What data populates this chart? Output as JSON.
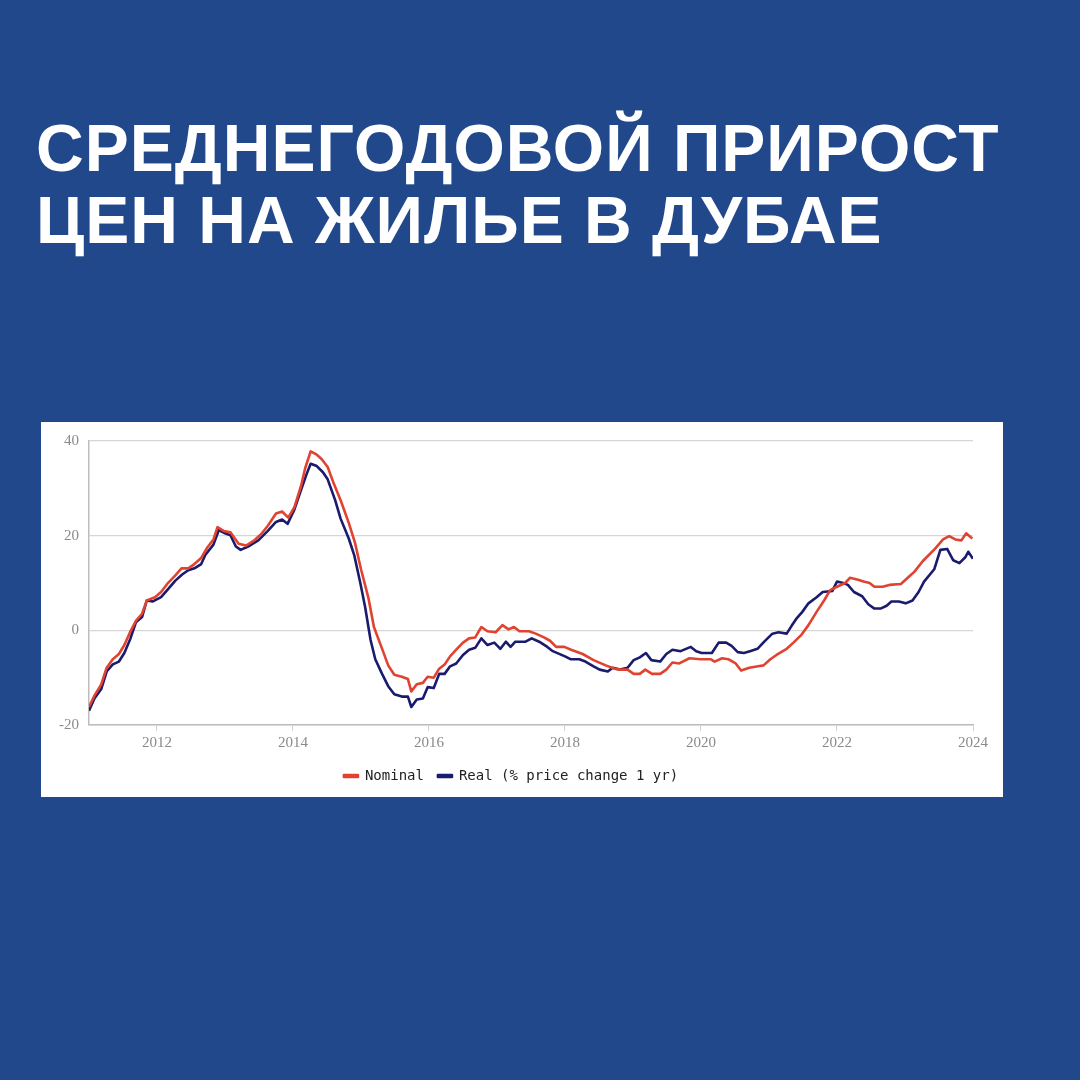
{
  "chart_data": {
    "type": "line",
    "title": "СРЕДНЕГОДОВОЙ ПРИРОСТ ЦЕН НА ЖИЛЬЕ В ДУБАЕ",
    "xlim": [
      2011,
      2024
    ],
    "xticks": [
      2012,
      2014,
      2016,
      2018,
      2020,
      2022,
      2024
    ],
    "ylim": [
      -20,
      40
    ],
    "yticks": [
      -20,
      0,
      20,
      40
    ],
    "grid": "y",
    "legend": "bottom",
    "marker": "none",
    "line_style": "solid",
    "series": [
      {
        "name": "Nominal",
        "color": "#e0432f",
        "x": [
          2011.0,
          2011.08,
          2011.18,
          2011.26,
          2011.35,
          2011.44,
          2011.52,
          2011.61,
          2011.69,
          2011.78,
          2011.85,
          2011.97,
          2012.06,
          2012.15,
          2012.27,
          2012.36,
          2012.46,
          2012.55,
          2012.65,
          2012.74,
          2012.83,
          2012.89,
          2012.98,
          2013.08,
          2013.2,
          2013.31,
          2013.43,
          2013.53,
          2013.63,
          2013.75,
          2013.84,
          2013.93,
          2014.02,
          2014.12,
          2014.18,
          2014.26,
          2014.35,
          2014.42,
          2014.51,
          2014.6,
          2014.7,
          2014.82,
          2014.91,
          2015.0,
          2015.11,
          2015.19,
          2015.3,
          2015.4,
          2015.49,
          2015.6,
          2015.69,
          2015.74,
          2015.82,
          2015.91,
          2015.98,
          2016.07,
          2016.15,
          2016.23,
          2016.31,
          2016.4,
          2016.5,
          2016.59,
          2016.68,
          2016.77,
          2016.86,
          2016.98,
          2017.08,
          2017.17,
          2017.25,
          2017.33,
          2017.47,
          2017.57,
          2017.69,
          2017.78,
          2017.87,
          2017.99,
          2018.09,
          2018.26,
          2018.42,
          2018.6,
          2018.73,
          2018.81,
          2018.92,
          2019.01,
          2019.1,
          2019.18,
          2019.28,
          2019.4,
          2019.49,
          2019.58,
          2019.68,
          2019.83,
          2019.99,
          2020.14,
          2020.2,
          2020.31,
          2020.4,
          2020.51,
          2020.59,
          2020.71,
          2020.84,
          2020.92,
          2021.02,
          2021.11,
          2021.26,
          2021.36,
          2021.48,
          2021.58,
          2021.7,
          2021.81,
          2021.9,
          2022.0,
          2022.12,
          2022.19,
          2022.31,
          2022.39,
          2022.48,
          2022.55,
          2022.67,
          2022.77,
          2022.94,
          2023.04,
          2023.14,
          2023.26,
          2023.44,
          2023.56,
          2023.65,
          2023.74,
          2023.83,
          2023.9,
          2023.99
        ],
        "values": [
          -16.2,
          -13.8,
          -11.4,
          -7.9,
          -6.1,
          -5.0,
          -3.1,
          -0.2,
          2.0,
          3.5,
          6.3,
          7.0,
          8.1,
          9.8,
          11.6,
          13.1,
          13.1,
          14.0,
          15.3,
          17.5,
          19.2,
          21.8,
          21.0,
          20.7,
          18.3,
          17.9,
          19.0,
          20.3,
          22.1,
          24.7,
          25.1,
          23.8,
          26.0,
          30.6,
          34.3,
          37.8,
          37.1,
          36.2,
          34.5,
          31.0,
          27.5,
          22.7,
          18.6,
          12.9,
          6.8,
          0.7,
          -3.5,
          -7.4,
          -9.4,
          -9.8,
          -10.3,
          -12.9,
          -11.4,
          -11.1,
          -9.8,
          -10.0,
          -8.1,
          -7.2,
          -5.5,
          -4.1,
          -2.6,
          -1.7,
          -1.5,
          0.7,
          -0.2,
          -0.4,
          1.1,
          0.2,
          0.7,
          -0.2,
          -0.2,
          -0.7,
          -1.5,
          -2.2,
          -3.5,
          -3.5,
          -4.1,
          -5.0,
          -6.3,
          -7.4,
          -8.1,
          -8.3,
          -8.3,
          -9.2,
          -9.2,
          -8.3,
          -9.2,
          -9.2,
          -8.3,
          -6.8,
          -7.0,
          -5.9,
          -6.1,
          -6.1,
          -6.6,
          -5.9,
          -6.1,
          -7.0,
          -8.5,
          -7.9,
          -7.6,
          -7.4,
          -6.1,
          -5.2,
          -3.9,
          -2.6,
          -0.9,
          1.1,
          3.9,
          6.3,
          8.5,
          9.2,
          10.0,
          11.1,
          10.7,
          10.3,
          10.0,
          9.2,
          9.2,
          9.6,
          9.8,
          11.1,
          12.4,
          14.6,
          17.2,
          19.2,
          19.9,
          19.2,
          19.0,
          20.5,
          19.4
        ]
      },
      {
        "name": "Real (% price change 1 yr)",
        "color": "#1a1a6e",
        "x": [
          2011.0,
          2011.08,
          2011.18,
          2011.26,
          2011.35,
          2011.44,
          2011.52,
          2011.61,
          2011.69,
          2011.78,
          2011.85,
          2011.94,
          2012.06,
          2012.15,
          2012.27,
          2012.37,
          2012.46,
          2012.55,
          2012.65,
          2012.71,
          2012.83,
          2012.91,
          2013.0,
          2013.08,
          2013.16,
          2013.23,
          2013.34,
          2013.49,
          2013.63,
          2013.75,
          2013.84,
          2013.92,
          2014.02,
          2014.11,
          2014.2,
          2014.26,
          2014.35,
          2014.44,
          2014.51,
          2014.62,
          2014.7,
          2014.82,
          2014.9,
          2014.99,
          2015.06,
          2015.14,
          2015.21,
          2015.31,
          2015.4,
          2015.49,
          2015.6,
          2015.69,
          2015.74,
          2015.82,
          2015.91,
          2015.98,
          2016.07,
          2016.15,
          2016.23,
          2016.31,
          2016.4,
          2016.5,
          2016.59,
          2016.68,
          2016.77,
          2016.86,
          2016.96,
          2017.05,
          2017.13,
          2017.2,
          2017.27,
          2017.42,
          2017.51,
          2017.62,
          2017.74,
          2017.82,
          2018.0,
          2018.08,
          2018.21,
          2018.3,
          2018.42,
          2018.51,
          2018.63,
          2018.7,
          2018.81,
          2018.92,
          2019.01,
          2019.1,
          2019.19,
          2019.27,
          2019.4,
          2019.49,
          2019.58,
          2019.7,
          2019.85,
          2019.93,
          2020.01,
          2020.16,
          2020.26,
          2020.37,
          2020.45,
          2020.54,
          2020.63,
          2020.72,
          2020.83,
          2020.93,
          2021.05,
          2021.14,
          2021.26,
          2021.33,
          2021.41,
          2021.49,
          2021.58,
          2021.7,
          2021.79,
          2021.93,
          2022.0,
          2022.09,
          2022.16,
          2022.25,
          2022.37,
          2022.46,
          2022.55,
          2022.64,
          2022.73,
          2022.8,
          2022.91,
          2023.01,
          2023.11,
          2023.2,
          2023.28,
          2023.43,
          2023.52,
          2023.62,
          2023.71,
          2023.8,
          2023.89,
          2023.93,
          2024.0
        ],
        "values": [
          -17.0,
          -14.4,
          -12.4,
          -8.7,
          -7.2,
          -6.6,
          -4.8,
          -1.7,
          1.7,
          2.8,
          6.3,
          6.1,
          7.0,
          8.5,
          10.5,
          11.8,
          12.7,
          13.1,
          14.0,
          15.9,
          18.1,
          21.2,
          20.5,
          20.1,
          17.7,
          17.0,
          17.7,
          19.0,
          21.0,
          22.9,
          23.4,
          22.5,
          25.5,
          29.3,
          33.0,
          35.2,
          34.7,
          33.4,
          31.9,
          27.5,
          23.6,
          19.4,
          15.9,
          10.0,
          5.0,
          -2.0,
          -6.1,
          -9.2,
          -11.8,
          -13.5,
          -14.0,
          -14.0,
          -16.2,
          -14.6,
          -14.4,
          -12.0,
          -12.2,
          -9.2,
          -9.2,
          -7.6,
          -7.0,
          -5.2,
          -4.1,
          -3.7,
          -1.7,
          -3.1,
          -2.6,
          -3.9,
          -2.4,
          -3.5,
          -2.4,
          -2.4,
          -1.7,
          -2.4,
          -3.5,
          -4.4,
          -5.5,
          -6.1,
          -6.1,
          -6.6,
          -7.6,
          -8.3,
          -8.7,
          -7.9,
          -8.3,
          -7.9,
          -6.3,
          -5.7,
          -4.8,
          -6.3,
          -6.6,
          -5.0,
          -4.1,
          -4.4,
          -3.5,
          -4.4,
          -4.8,
          -4.8,
          -2.6,
          -2.6,
          -3.3,
          -4.6,
          -4.8,
          -4.4,
          -3.9,
          -2.4,
          -0.7,
          -0.4,
          -0.7,
          0.9,
          2.6,
          3.9,
          5.7,
          7.0,
          8.1,
          8.3,
          10.3,
          10.0,
          9.6,
          8.1,
          7.2,
          5.5,
          4.6,
          4.6,
          5.2,
          6.1,
          6.1,
          5.7,
          6.3,
          8.1,
          10.3,
          12.9,
          17.0,
          17.2,
          14.8,
          14.2,
          15.5,
          16.6,
          15.1
        ]
      }
    ]
  }
}
